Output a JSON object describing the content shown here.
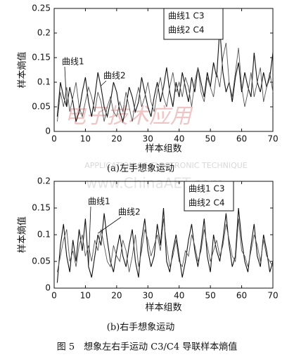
{
  "chart_data": [
    {
      "type": "line",
      "subtitle": "(a)左手想象运动",
      "xlabel": "样本组数",
      "ylabel": "样本熵值",
      "legend": "upper right",
      "annotations": [
        "曲线1",
        "曲线2"
      ],
      "x": [
        1,
        2,
        3,
        4,
        5,
        6,
        7,
        8,
        9,
        10,
        11,
        12,
        13,
        14,
        15,
        16,
        17,
        18,
        19,
        20,
        21,
        22,
        23,
        24,
        25,
        26,
        27,
        28,
        29,
        30,
        31,
        32,
        33,
        34,
        35,
        36,
        37,
        38,
        39,
        40,
        41,
        42,
        43,
        44,
        45,
        46,
        47,
        48,
        49,
        50,
        51,
        52,
        53,
        54,
        55,
        56,
        57,
        58,
        59,
        60,
        61,
        62,
        63,
        64,
        65,
        66,
        67,
        68,
        69,
        70
      ],
      "xlim": [
        0,
        70
      ],
      "xticks": [
        0,
        10,
        20,
        30,
        40,
        50,
        60,
        70
      ],
      "ylim": [
        0,
        0.25
      ],
      "yticks": [
        0,
        0.05,
        0.1,
        0.15,
        0.2,
        0.25
      ],
      "series": [
        {
          "name": "曲线1 C3",
          "color": "#111111",
          "values": [
            0.03,
            0.1,
            0.07,
            0.05,
            0.09,
            0.06,
            0.02,
            0.04,
            0.08,
            0.11,
            0.06,
            0.03,
            0.07,
            0.12,
            0.09,
            0.05,
            0.03,
            0.06,
            0.1,
            0.08,
            0.04,
            0.02,
            0.05,
            0.09,
            0.07,
            0.04,
            0.06,
            0.11,
            0.08,
            0.05,
            0.03,
            0.07,
            0.1,
            0.06,
            0.09,
            0.13,
            0.08,
            0.05,
            0.1,
            0.07,
            0.12,
            0.09,
            0.06,
            0.11,
            0.08,
            0.13,
            0.1,
            0.07,
            0.12,
            0.09,
            0.14,
            0.11,
            0.21,
            0.12,
            0.08,
            0.1,
            0.06,
            0.11,
            0.14,
            0.08,
            0.12,
            0.09,
            0.07,
            0.16,
            0.1,
            0.08,
            0.12,
            0.09,
            0.11,
            0.16
          ]
        },
        {
          "name": "曲线2 C4",
          "color": "#555555",
          "values": [
            0.02,
            0.08,
            0.05,
            0.09,
            0.04,
            0.07,
            0.1,
            0.05,
            0.03,
            0.06,
            0.09,
            0.07,
            0.04,
            0.08,
            0.06,
            0.02,
            0.05,
            0.07,
            0.04,
            0.03,
            0.06,
            0.04,
            0.08,
            0.05,
            0.02,
            0.06,
            0.09,
            0.05,
            0.07,
            0.1,
            0.06,
            0.04,
            0.08,
            0.11,
            0.07,
            0.05,
            0.09,
            0.12,
            0.08,
            0.1,
            0.07,
            0.11,
            0.09,
            0.05,
            0.1,
            0.13,
            0.08,
            0.06,
            0.11,
            0.09,
            0.07,
            0.12,
            0.09,
            0.15,
            0.18,
            0.1,
            0.07,
            0.12,
            0.17,
            0.09,
            0.05,
            0.08,
            0.12,
            0.07,
            0.1,
            0.13,
            0.06,
            0.09,
            0.12,
            0.08
          ]
        }
      ]
    },
    {
      "type": "line",
      "subtitle": "(b)右手想象运动",
      "xlabel": "样本组数",
      "ylabel": "样本熵值",
      "legend": "upper right",
      "annotations": [
        "曲线1",
        "曲线2"
      ],
      "x": [
        1,
        2,
        3,
        4,
        5,
        6,
        7,
        8,
        9,
        10,
        11,
        12,
        13,
        14,
        15,
        16,
        17,
        18,
        19,
        20,
        21,
        22,
        23,
        24,
        25,
        26,
        27,
        28,
        29,
        30,
        31,
        32,
        33,
        34,
        35,
        36,
        37,
        38,
        39,
        40,
        41,
        42,
        43,
        44,
        45,
        46,
        47,
        48,
        49,
        50,
        51,
        52,
        53,
        54,
        55,
        56,
        57,
        58,
        59,
        60,
        61,
        62,
        63,
        64,
        65,
        66,
        67,
        68,
        69,
        70
      ],
      "xlim": [
        0,
        70
      ],
      "xticks": [
        0,
        10,
        20,
        30,
        40,
        50,
        60,
        70
      ],
      "ylim": [
        0,
        0.2
      ],
      "yticks": [
        0,
        0.05,
        0.1,
        0.15,
        0.2
      ],
      "series": [
        {
          "name": "曲线1 C3",
          "color": "#111111",
          "values": [
            0.01,
            0.08,
            0.12,
            0.06,
            0.03,
            0.09,
            0.05,
            0.11,
            0.07,
            0.13,
            0.04,
            0.02,
            0.06,
            0.1,
            0.08,
            0.14,
            0.09,
            0.05,
            0.03,
            0.07,
            0.1,
            0.06,
            0.04,
            0.08,
            0.11,
            0.05,
            0.02,
            0.09,
            0.13,
            0.07,
            0.04,
            0.06,
            0.12,
            0.08,
            0.15,
            0.05,
            0.03,
            0.07,
            0.1,
            0.06,
            0.02,
            0.05,
            0.09,
            0.12,
            0.07,
            0.04,
            0.08,
            0.13,
            0.06,
            0.03,
            0.1,
            0.07,
            0.05,
            0.09,
            0.14,
            0.08,
            0.04,
            0.06,
            0.15,
            0.09,
            0.05,
            0.03,
            0.08,
            0.12,
            0.06,
            0.04,
            0.1,
            0.07,
            0.03,
            0.05
          ]
        },
        {
          "name": "曲线2 C4",
          "color": "#555555",
          "values": [
            0.03,
            0.06,
            0.09,
            0.11,
            0.05,
            0.07,
            0.04,
            0.08,
            0.1,
            0.06,
            0.08,
            0.05,
            0.09,
            0.07,
            0.11,
            0.08,
            0.05,
            0.04,
            0.08,
            0.06,
            0.05,
            0.09,
            0.07,
            0.03,
            0.06,
            0.1,
            0.04,
            0.07,
            0.11,
            0.09,
            0.06,
            0.08,
            0.1,
            0.07,
            0.13,
            0.08,
            0.04,
            0.06,
            0.09,
            0.05,
            0.04,
            0.07,
            0.06,
            0.1,
            0.08,
            0.05,
            0.07,
            0.11,
            0.08,
            0.05,
            0.07,
            0.09,
            0.06,
            0.08,
            0.12,
            0.09,
            0.06,
            0.05,
            0.13,
            0.07,
            0.06,
            0.04,
            0.07,
            0.1,
            0.08,
            0.05,
            0.09,
            0.06,
            0.05,
            0.04
          ]
        }
      ]
    }
  ],
  "watermark": [
    "电子技术应用",
    "APPLICATION OF ELECTRONIC TECHNIQUE",
    "www.ChinaAET.com"
  ],
  "caption": "图 5　想象左右手运动 C3/C4 导联样本熵值"
}
